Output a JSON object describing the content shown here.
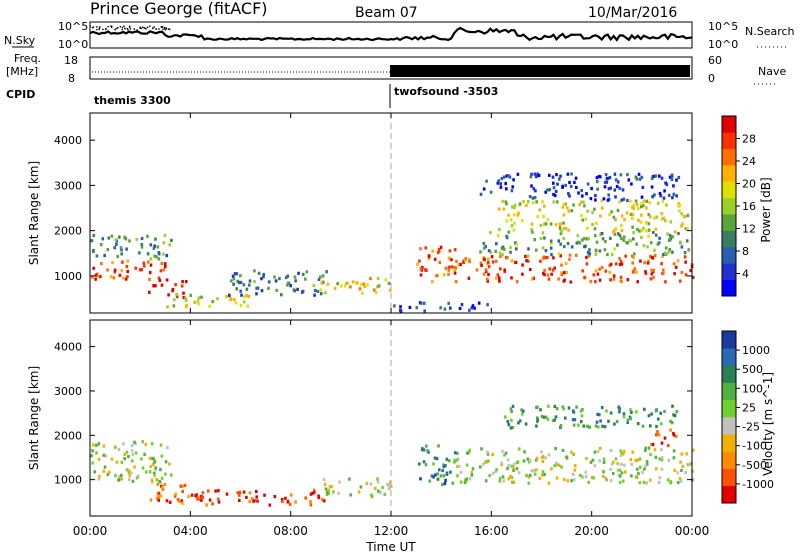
{
  "header": {
    "station": "Prince George (fitACF)",
    "beam": "Beam 07",
    "date": "10/Mar/2016"
  },
  "top_panels": {
    "nsky_label": "N.Sky",
    "nsky_ticks": [
      "10^5",
      "10^0"
    ],
    "nsearch_label": "N.Search",
    "freq_label_1": "Freq.",
    "freq_label_2": "[MHz]",
    "freq_ticks": [
      "18",
      "8"
    ],
    "nave_label": "Nave",
    "nave_ticks": [
      "60",
      "0"
    ],
    "cpid_label": "CPID",
    "cpid_modes": [
      {
        "name": "themis 3300",
        "start_hour": 0,
        "end_hour": 12
      },
      {
        "name": "twofsound -3503",
        "start_hour": 12,
        "end_hour": 24
      }
    ]
  },
  "chart_data": [
    {
      "type": "heatmap",
      "title": "",
      "xlabel": "Time UT",
      "ylabel": "Slant Range [km]",
      "xlim": [
        0,
        24
      ],
      "ylim": [
        180,
        4600
      ],
      "x_ticks": [
        "00:00",
        "04:00",
        "08:00",
        "12:00",
        "16:00",
        "20:00",
        "00:00"
      ],
      "y_ticks": [
        1000,
        2000,
        3000,
        4000
      ],
      "colorbar": {
        "label": "Power [dB]",
        "ticks": [
          "4",
          "8",
          "12",
          "16",
          "20",
          "24",
          "28"
        ],
        "colors": [
          "#0000ff",
          "#2030d0",
          "#2a5db0",
          "#3a7d60",
          "#59a53a",
          "#9bd02a",
          "#e0e000",
          "#ffb000",
          "#ff7000",
          "#ff3000",
          "#e00000"
        ]
      },
      "scatter_regions": [
        {
          "t": [
            0,
            3.0
          ],
          "r": [
            950,
            1400
          ],
          "level": 0.85
        },
        {
          "t": [
            0,
            3.2
          ],
          "r": [
            1400,
            1950
          ],
          "level": 0.35
        },
        {
          "t": [
            2.3,
            3.8
          ],
          "r": [
            550,
            950
          ],
          "level": 0.95
        },
        {
          "t": [
            3.0,
            6.5
          ],
          "r": [
            350,
            650
          ],
          "level": 0.55
        },
        {
          "t": [
            5.5,
            9.5
          ],
          "r": [
            600,
            1150
          ],
          "level": 0.3
        },
        {
          "t": [
            9.0,
            12.0
          ],
          "r": [
            650,
            1000
          ],
          "level": 0.6
        },
        {
          "t": [
            13.0,
            14.6
          ],
          "r": [
            850,
            1700
          ],
          "level": 0.85
        },
        {
          "t": [
            12.0,
            16.0
          ],
          "r": [
            250,
            450
          ],
          "level": 0.2
        },
        {
          "t": [
            14.5,
            24.0
          ],
          "r": [
            900,
            1500
          ],
          "level": 0.85
        },
        {
          "t": [
            15.5,
            24.0
          ],
          "r": [
            1500,
            2000
          ],
          "level": 0.4
        },
        {
          "t": [
            16.2,
            23.8
          ],
          "r": [
            2000,
            2700
          ],
          "level": 0.55
        },
        {
          "t": [
            15.5,
            23.5
          ],
          "r": [
            2700,
            3300
          ],
          "level": 0.15
        }
      ]
    },
    {
      "type": "heatmap",
      "title": "",
      "xlabel": "Time UT",
      "ylabel": "Slant Range [km]",
      "xlim": [
        0,
        24
      ],
      "ylim": [
        180,
        4600
      ],
      "x_ticks": [
        "00:00",
        "04:00",
        "08:00",
        "12:00",
        "16:00",
        "20:00",
        "00:00"
      ],
      "y_ticks": [
        1000,
        2000,
        3000,
        4000
      ],
      "colorbar": {
        "label": "Velocity [m s^-1]",
        "ticks": [
          "1000",
          "500",
          "100",
          "25",
          "-25",
          "-100",
          "-500",
          "-1000"
        ],
        "colors": [
          "#1a3aa0",
          "#2a6ab0",
          "#2a8050",
          "#50b040",
          "#70d030",
          "#c0c0c0",
          "#f0b000",
          "#ff8c00",
          "#ff5000",
          "#e00000"
        ]
      },
      "scatter_regions": [
        {
          "t": [
            0,
            3.2
          ],
          "r": [
            950,
            1900
          ],
          "level": 0.5
        },
        {
          "t": [
            2.3,
            4.5
          ],
          "r": [
            500,
            950
          ],
          "level": 0.78
        },
        {
          "t": [
            4.0,
            9.5
          ],
          "r": [
            450,
            800
          ],
          "level": 0.88
        },
        {
          "t": [
            9.0,
            12.0
          ],
          "r": [
            650,
            1050
          ],
          "level": 0.5
        },
        {
          "t": [
            13.0,
            14.6
          ],
          "r": [
            900,
            1800
          ],
          "level": 0.25
        },
        {
          "t": [
            14.5,
            24.0
          ],
          "r": [
            950,
            1750
          ],
          "level": 0.5
        },
        {
          "t": [
            16.5,
            23.5
          ],
          "r": [
            2200,
            2700
          ],
          "level": 0.3
        },
        {
          "t": [
            22.3,
            23.4
          ],
          "r": [
            1800,
            2200
          ],
          "level": 0.85
        }
      ]
    }
  ]
}
